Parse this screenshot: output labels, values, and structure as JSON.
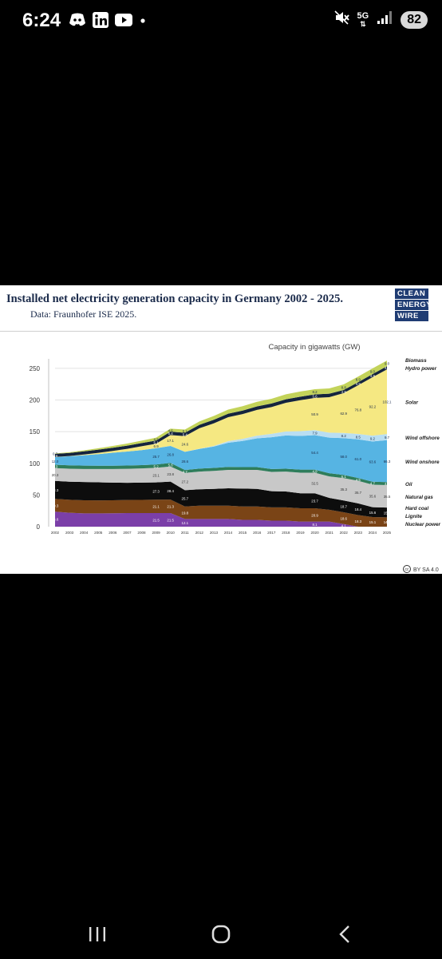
{
  "status_bar": {
    "time": "6:24",
    "network": "5G",
    "battery": "82",
    "icons": [
      "discord-icon",
      "linkedin-icon",
      "youtube-icon",
      "dot-icon",
      "mute-icon",
      "wifi-icon",
      "signal-icon"
    ]
  },
  "header": {
    "title": "Installed net electricity generation capacity in Germany 2002 - 2025.",
    "subtitle": "Data: Fraunhofer ISE 2025.",
    "logo_lines": [
      "CLEAN",
      "ENERGY",
      "WIRE"
    ]
  },
  "license": "BY SA 4.0",
  "chart_data": {
    "type": "area",
    "stacked": true,
    "title": "",
    "ylabel": "Capacity in gigawatts (GW)",
    "xlabel": "",
    "ylim": [
      0,
      260
    ],
    "yticks": [
      0,
      50,
      100,
      150,
      200,
      250
    ],
    "grid": true,
    "legend_position": "right",
    "x": [
      2002,
      2003,
      2004,
      2005,
      2006,
      2007,
      2008,
      2009,
      2010,
      2011,
      2012,
      2013,
      2014,
      2015,
      2016,
      2017,
      2018,
      2019,
      2020,
      2021,
      2022,
      2023,
      2024,
      2025
    ],
    "series": [
      {
        "name": "Nuclear power",
        "color": "#7b3fa8",
        "label_color": "#ffffff",
        "values": [
          23.6,
          22.0,
          21.0,
          21.0,
          21.2,
          21.5,
          21.5,
          21.5,
          21.5,
          12.1,
          12.1,
          12.1,
          12.1,
          10.8,
          10.8,
          9.5,
          9.5,
          8.1,
          8.1,
          8.1,
          4.1,
          0,
          0,
          0
        ],
        "data_labels": {
          "2002": "23.6",
          "2009": "21.5",
          "2010": "21.5",
          "2011": "12.1",
          "2020": "8.1",
          "2022": "4.1"
        }
      },
      {
        "name": "Lignite",
        "color": "#7a4416",
        "label_color": "#ffffff",
        "values": [
          20.3,
          20.5,
          20.6,
          20.5,
          20.5,
          20.6,
          20.8,
          21.1,
          21.3,
          19.8,
          21.0,
          21.0,
          21.0,
          21.0,
          21.0,
          21.0,
          21.0,
          20.9,
          20.9,
          18.6,
          18.6,
          18.3,
          15.1,
          14.7
        ],
        "data_labels": {
          "2002": "20.3",
          "2009": "21.1",
          "2010": "21.3",
          "2011": "19.8",
          "2020": "20.9",
          "2022": "18.6",
          "2023": "18.3",
          "2024": "15.1",
          "2025": "14.7"
        }
      },
      {
        "name": "Hard coal",
        "color": "#0d0d0d",
        "label_color": "#ffffff",
        "values": [
          28.3,
          28.5,
          28.9,
          28.5,
          27.8,
          27.2,
          27.2,
          27.3,
          28.4,
          25.7,
          25.9,
          26.5,
          27.5,
          28.3,
          27.8,
          25.5,
          25.0,
          23.7,
          23.7,
          18.7,
          18.7,
          18.4,
          15.6,
          15.4
        ],
        "data_labels": {
          "2002": "28.3",
          "2009": "27.3",
          "2010": "28.4",
          "2011": "25.7",
          "2020": "23.7",
          "2022": "18.7",
          "2023": "18.4",
          "2024": "15.6",
          "2025": "15.4"
        }
      },
      {
        "name": "Natural gas",
        "color": "#c8c8c8",
        "label_color": "#333333",
        "values": [
          20.3,
          20.5,
          20.6,
          21.0,
          21.5,
          22.0,
          22.5,
          23.1,
          23.8,
          27.2,
          28.0,
          28.5,
          29.0,
          29.5,
          30.0,
          30.5,
          31.5,
          32.5,
          32.5,
          34.0,
          35.3,
          35.7,
          35.6,
          35.5
        ],
        "data_labels": {
          "2002": "20.3",
          "2009": "23.1",
          "2010": "23.8",
          "2011": "27.2",
          "2020": "32.5",
          "2022": "35.3",
          "2023": "35.7",
          "2024": "35.6",
          "2025": "35.5"
        }
      },
      {
        "name": "Oil",
        "color": "#2e7d5b",
        "label_color": "#ffffff",
        "values": [
          5.3,
          5.3,
          5.3,
          5.3,
          5.3,
          5.3,
          5.2,
          5.2,
          5.6,
          4.7,
          4.7,
          4.7,
          4.7,
          4.5,
          4.5,
          4.5,
          4.5,
          4.9,
          4.9,
          5.0,
          5.1,
          4.5,
          4.7,
          4.7
        ],
        "data_labels": {
          "2002": "5.3",
          "2009": "5.2",
          "2010": "5.6",
          "2011": "4.7",
          "2020": "4.9",
          "2022": "5.1",
          "2023": "4.5",
          "2024": "4.7",
          "2025": "4.7"
        }
      },
      {
        "name": "Wind onshore",
        "color": "#56b4e3",
        "label_color": "#1a2a4a",
        "values": [
          12.0,
          14.4,
          16.4,
          18.2,
          20.4,
          22.1,
          23.7,
          25.7,
          26.8,
          28.6,
          31.0,
          33.8,
          38.3,
          41.2,
          45.4,
          50.2,
          52.5,
          53.2,
          54.4,
          56.2,
          58.0,
          61.0,
          63.6,
          66.3
        ],
        "data_labels": {
          "2002": "12.0",
          "2009": "25.7",
          "2010": "26.8",
          "2011": "28.6",
          "2020": "54.4",
          "2022": "58.0",
          "2023": "61.0",
          "2024": "63.6",
          "2025": "66.3"
        }
      },
      {
        "name": "Wind offshore",
        "color": "#b9def2",
        "label_color": "#1a2a4a",
        "values": [
          0,
          0,
          0,
          0,
          0,
          0,
          0,
          0.1,
          0.2,
          0.2,
          0.3,
          0.9,
          2.4,
          3.3,
          4.2,
          5.4,
          6.4,
          7.5,
          7.9,
          7.8,
          8.2,
          8.5,
          9.2,
          9.7
        ],
        "data_labels": {
          "2020": "7.9",
          "2022": "8.2",
          "2023": "8.5",
          "2024": "9.2",
          "2025": "9.7"
        }
      },
      {
        "name": "Solar",
        "color": "#f5e882",
        "label_color": "#1a2a4a",
        "values": [
          0.3,
          0.4,
          1.1,
          2.1,
          2.9,
          4.2,
          6.1,
          6.9,
          17.1,
          24.6,
          32.4,
          35.7,
          37.9,
          39.2,
          40.7,
          42.3,
          45.2,
          48.9,
          50.9,
          56.0,
          62.9,
          76.8,
          92.2,
          102.1
        ],
        "data_labels": {
          "2009": "6.9",
          "2010": "17.1",
          "2011": "24.6",
          "2020": "50.9",
          "2022": "62.9",
          "2023": "76.8",
          "2024": "92.2",
          "2025": "102.1"
        }
      },
      {
        "name": "Hydro power",
        "color": "#15243d",
        "label_color": "#ffffff",
        "values": [
          4.9,
          4.9,
          5.0,
          5.0,
          5.0,
          5.1,
          5.1,
          5.1,
          5.4,
          5.4,
          5.4,
          5.6,
          5.6,
          5.6,
          5.6,
          5.6,
          5.6,
          5.6,
          5.6,
          5.6,
          4.9,
          4.9,
          4.9,
          4.9
        ],
        "data_labels": {
          "2002": "4.9",
          "2009": "5.1",
          "2010": "5.4",
          "2011": "5.4",
          "2020": "5.6",
          "2022": "4.9",
          "2023": "4.9",
          "2024": "4.9",
          "2025": "4.9"
        }
      },
      {
        "name": "Biomass",
        "color": "#c3d35a",
        "label_color": "#1a2a4a",
        "values": [
          0.7,
          1.1,
          1.6,
          2.2,
          2.8,
          3.3,
          3.7,
          4.5,
          4.6,
          5.1,
          5.4,
          6.0,
          6.4,
          6.8,
          7.2,
          7.5,
          7.8,
          8.1,
          8.2,
          8.4,
          8.8,
          8.9,
          9.0,
          9.0
        ],
        "data_labels": {
          "2002": "0.7",
          "2009": "4.5",
          "2010": "4.6",
          "2011": "5.1",
          "2020": "8.2",
          "2022": "8.8",
          "2023": "8.9",
          "2024": "9.0",
          "2025": "9.0"
        }
      }
    ]
  }
}
